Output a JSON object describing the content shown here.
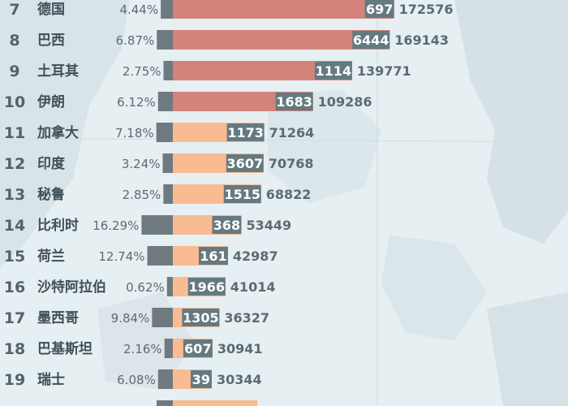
{
  "chart_data": {
    "type": "bar",
    "title": "",
    "columns": [
      "rank",
      "country",
      "percentage",
      "new_cases",
      "total_cases"
    ],
    "rows": [
      {
        "rank": "7",
        "country": "德国",
        "pct": "4.44%",
        "new_cases": 697,
        "total": 172576,
        "group": "top"
      },
      {
        "rank": "8",
        "country": "巴西",
        "pct": "6.87%",
        "new_cases": 6444,
        "total": 169143,
        "group": "top"
      },
      {
        "rank": "9",
        "country": "土耳其",
        "pct": "2.75%",
        "new_cases": 1114,
        "total": 139771,
        "group": "top"
      },
      {
        "rank": "10",
        "country": "伊朗",
        "pct": "6.12%",
        "new_cases": 1683,
        "total": 109286,
        "group": "top"
      },
      {
        "rank": "11",
        "country": "加拿大",
        "pct": "7.18%",
        "new_cases": 1173,
        "total": 71264,
        "group": "rest"
      },
      {
        "rank": "12",
        "country": "印度",
        "pct": "3.24%",
        "new_cases": 3607,
        "total": 70768,
        "group": "rest"
      },
      {
        "rank": "13",
        "country": "秘鲁",
        "pct": "2.85%",
        "new_cases": 1515,
        "total": 68822,
        "group": "rest"
      },
      {
        "rank": "14",
        "country": "比利时",
        "pct": "16.29%",
        "new_cases": 368,
        "total": 53449,
        "group": "rest"
      },
      {
        "rank": "15",
        "country": "荷兰",
        "pct": "12.74%",
        "new_cases": 161,
        "total": 42987,
        "group": "rest"
      },
      {
        "rank": "16",
        "country": "沙特阿拉伯",
        "pct": "0.62%",
        "new_cases": 1966,
        "total": 41014,
        "group": "rest"
      },
      {
        "rank": "17",
        "country": "墨西哥",
        "pct": "9.84%",
        "new_cases": 1305,
        "total": 36327,
        "group": "rest"
      },
      {
        "rank": "18",
        "country": "巴基斯坦",
        "pct": "2.16%",
        "new_cases": 607,
        "total": 30941,
        "group": "rest"
      },
      {
        "rank": "19",
        "country": "瑞士",
        "pct": "6.08%",
        "new_cases": 39,
        "total": 30344,
        "group": "rest"
      }
    ],
    "colors": {
      "bar_top": "#d4837a",
      "bar_rest": "#f8bb92",
      "pct_bar": "#6f7a80",
      "label_bg": "#647a80"
    }
  }
}
